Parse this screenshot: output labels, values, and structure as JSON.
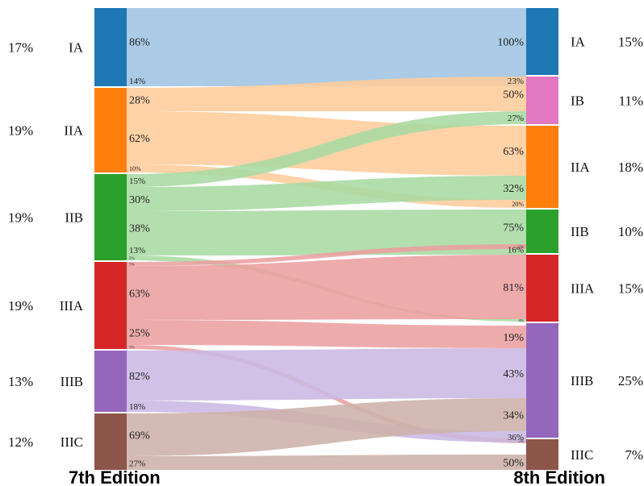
{
  "footer": {
    "left_label": "7th Edition",
    "right_label": "8th Edition"
  },
  "left_nodes": [
    {
      "id": "IA",
      "label": "IA",
      "share": "17%",
      "color": "#1f77b4"
    },
    {
      "id": "IIA",
      "label": "IIA",
      "share": "19%",
      "color": "#ff7f0e"
    },
    {
      "id": "IIB",
      "label": "IIB",
      "share": "19%",
      "color": "#2ca02c"
    },
    {
      "id": "IIIA",
      "label": "IIIA",
      "share": "19%",
      "color": "#d62728"
    },
    {
      "id": "IIIB",
      "label": "IIIB",
      "share": "13%",
      "color": "#9467bd"
    },
    {
      "id": "IIIC",
      "label": "IIIC",
      "share": "12%",
      "color": "#8c564b"
    }
  ],
  "right_nodes": [
    {
      "id": "IA",
      "label": "IA",
      "share": "15%",
      "color": "#1f77b4"
    },
    {
      "id": "IB",
      "label": "IB",
      "share": "11%",
      "color": "#e377c2"
    },
    {
      "id": "IIA",
      "label": "IIA",
      "share": "18%",
      "color": "#ff7f0e"
    },
    {
      "id": "IIB",
      "label": "IIB",
      "share": "10%",
      "color": "#2ca02c"
    },
    {
      "id": "IIIA",
      "label": "IIIA",
      "share": "15%",
      "color": "#d62728"
    },
    {
      "id": "IIIB",
      "label": "IIIB",
      "share": "25%",
      "color": "#9467bd"
    },
    {
      "id": "IIIC",
      "label": "IIIC",
      "share": "7%",
      "color": "#8c564b"
    }
  ],
  "flows": [
    {
      "from": "IA",
      "to": "IA",
      "left_label": "86%",
      "right_label": "100%"
    },
    {
      "from": "IA",
      "to": "IB",
      "left_label": "14%",
      "right_label": "23%"
    },
    {
      "from": "IIA",
      "to": "IB",
      "left_label": "28%",
      "right_label": "50%"
    },
    {
      "from": "IIA",
      "to": "IIA",
      "left_label": "62%",
      "right_label": "63%"
    },
    {
      "from": "IIA",
      "to": "IIB",
      "left_label": "10%",
      "right_label": "20%"
    },
    {
      "from": "IIB",
      "to": "IB",
      "left_label": "15%",
      "right_label": "27%"
    },
    {
      "from": "IIB",
      "to": "IIA",
      "left_label": "30%",
      "right_label": "32%"
    },
    {
      "from": "IIB",
      "to": "IIB",
      "left_label": "38%",
      "right_label": "75%"
    },
    {
      "from": "IIB",
      "to": "IIIA",
      "left_label": "13%",
      "right_label": "16%"
    },
    {
      "from": "IIB",
      "to": "IIIB",
      "left_label": "5%",
      "right_label": "4%"
    },
    {
      "from": "IIIA",
      "to": "IIB",
      "left_label": "5%",
      "right_label": "5%"
    },
    {
      "from": "IIIA",
      "to": "IIIA",
      "left_label": "63%",
      "right_label": "81%"
    },
    {
      "from": "IIIA",
      "to": "IIIB",
      "left_label": "25%",
      "right_label": "19%"
    },
    {
      "from": "IIIA",
      "to": "IIIC",
      "left_label": "5%",
      "right_label": "5%"
    },
    {
      "from": "IIIB",
      "to": "IIIB",
      "left_label": "82%",
      "right_label": "43%"
    },
    {
      "from": "IIIB",
      "to": "IIIC",
      "left_label": "18%",
      "right_label": "36%"
    },
    {
      "from": "IIIC",
      "to": "IIIB",
      "left_label": "69%",
      "right_label": "34%"
    },
    {
      "from": "IIIC",
      "to": "IIIC",
      "left_label": "27%",
      "right_label": "50%"
    }
  ]
}
